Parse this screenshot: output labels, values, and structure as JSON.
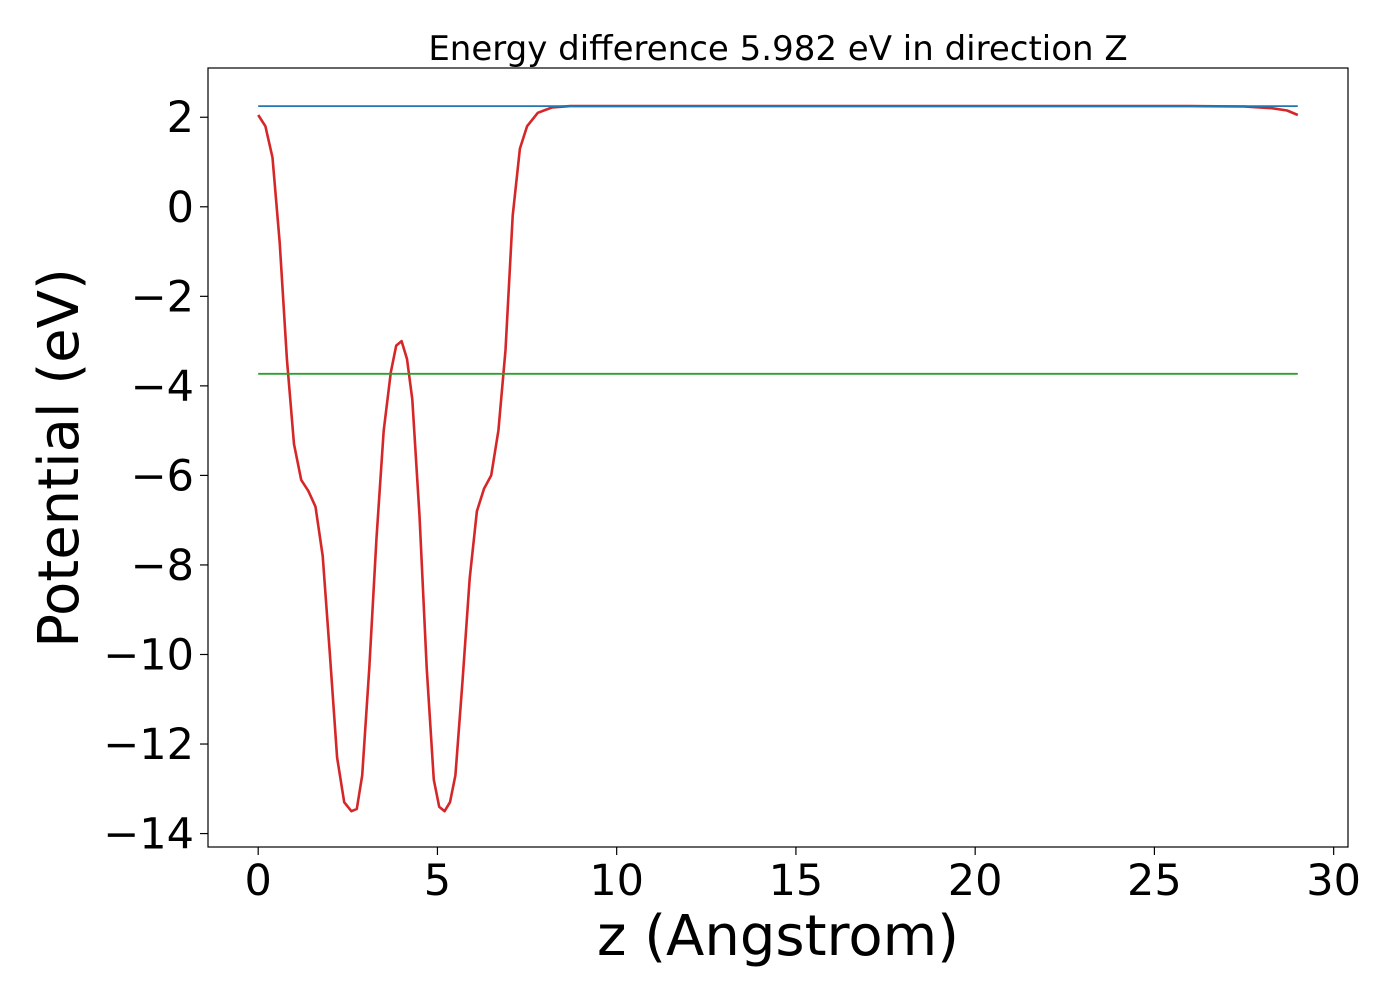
{
  "chart_data": {
    "type": "line",
    "title": "Energy difference 5.982 eV in direction Z",
    "xlabel": "z (Angstrom)",
    "ylabel": "Potential (eV)",
    "xlim": [
      -1.4,
      30.4
    ],
    "ylim": [
      -14.3,
      3.1
    ],
    "xticks": [
      0,
      5,
      10,
      15,
      20,
      25,
      30
    ],
    "xtick_labels": [
      "0",
      "5",
      "10",
      "15",
      "20",
      "25",
      "30"
    ],
    "yticks": [
      2,
      0,
      -2,
      -4,
      -6,
      -8,
      -10,
      -12,
      -14
    ],
    "ytick_labels": [
      "2",
      "0",
      "−2",
      "−4",
      "−6",
      "−8",
      "−10",
      "−12",
      "−14"
    ],
    "grid": false,
    "series": [
      {
        "kind": "line",
        "color": "#d62728",
        "x": [
          0,
          0.2,
          0.4,
          0.6,
          0.8,
          1.0,
          1.2,
          1.4,
          1.6,
          1.8,
          2.0,
          2.2,
          2.4,
          2.6,
          2.75,
          2.9,
          3.1,
          3.3,
          3.5,
          3.7,
          3.85,
          4.0,
          4.15,
          4.3,
          4.5,
          4.7,
          4.9,
          5.05,
          5.2,
          5.35,
          5.5,
          5.7,
          5.9,
          6.1,
          6.3,
          6.5,
          6.7,
          6.9,
          7.1,
          7.3,
          7.5,
          7.8,
          8.2,
          8.7,
          9.5,
          11,
          14,
          17,
          20,
          23,
          26,
          27.5,
          28.3,
          28.7,
          29.0
        ],
        "y": [
          2.05,
          1.8,
          1.1,
          -0.8,
          -3.4,
          -5.3,
          -6.1,
          -6.35,
          -6.7,
          -7.8,
          -10.0,
          -12.3,
          -13.3,
          -13.5,
          -13.45,
          -12.7,
          -10.3,
          -7.4,
          -5.0,
          -3.7,
          -3.1,
          -3.0,
          -3.4,
          -4.3,
          -6.9,
          -10.3,
          -12.8,
          -13.4,
          -13.5,
          -13.3,
          -12.7,
          -10.6,
          -8.3,
          -6.8,
          -6.3,
          -6.0,
          -5.0,
          -3.2,
          -0.2,
          1.3,
          1.8,
          2.1,
          2.22,
          2.25,
          2.25,
          2.25,
          2.25,
          2.25,
          2.25,
          2.25,
          2.25,
          2.24,
          2.2,
          2.15,
          2.05
        ]
      },
      {
        "kind": "hline",
        "color": "#1f77b4",
        "x": [
          0,
          29.0
        ],
        "y": [
          2.25,
          2.25
        ]
      },
      {
        "kind": "hline",
        "color": "#2ca02c",
        "x": [
          0,
          29.0
        ],
        "y": [
          -3.73,
          -3.73
        ]
      }
    ]
  }
}
